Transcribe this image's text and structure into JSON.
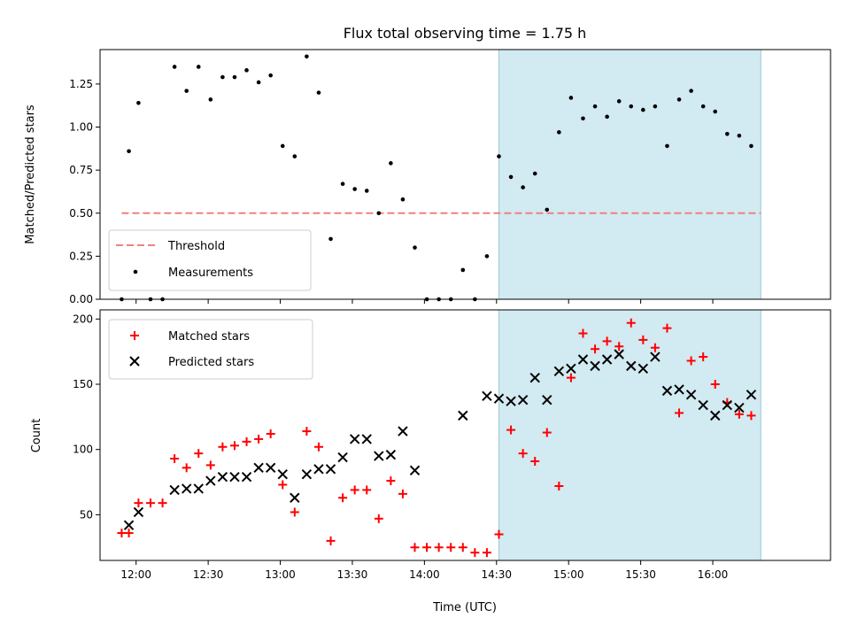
{
  "figure_title": "Flux total observing time = 1.75 h",
  "colors": {
    "measurement": "#000000",
    "threshold": "#f08080",
    "matched": "#ff0000",
    "predicted": "#000000",
    "shade": "#add8e6"
  },
  "chart_data": [
    {
      "type": "scatter",
      "name": "ratio-panel",
      "ylabel": "Matched/Predicted stars",
      "xlabel": "",
      "xlim": [
        "11:45",
        "16:49"
      ],
      "ylim": [
        0,
        1.45
      ],
      "yticks": [
        0.0,
        0.25,
        0.5,
        0.75,
        1.0,
        1.25
      ],
      "yticklabels": [
        "0.00",
        "0.25",
        "0.50",
        "0.75",
        "1.00",
        "1.25"
      ],
      "grid": false,
      "legend_position": "lower-left",
      "shaded_region": {
        "x_start": "14:31",
        "x_end": "16:20"
      },
      "threshold": {
        "name": "Threshold",
        "value": 0.5,
        "x_start": "11:54",
        "x_end": "16:20"
      },
      "series": [
        {
          "name": "Measurements",
          "x": [
            "11:54",
            "11:57",
            "12:01",
            "12:06",
            "12:11",
            "12:16",
            "12:21",
            "12:26",
            "12:31",
            "12:36",
            "12:41",
            "12:46",
            "12:51",
            "12:56",
            "13:01",
            "13:06",
            "13:11",
            "13:16",
            "13:21",
            "13:26",
            "13:31",
            "13:36",
            "13:41",
            "13:46",
            "13:51",
            "13:56",
            "14:01",
            "14:06",
            "14:11",
            "14:16",
            "14:21",
            "14:26",
            "14:31",
            "14:36",
            "14:41",
            "14:46",
            "14:51",
            "14:56",
            "15:01",
            "15:06",
            "15:11",
            "15:16",
            "15:21",
            "15:26",
            "15:31",
            "15:36",
            "15:41",
            "15:46",
            "15:51",
            "15:56",
            "16:01",
            "16:06",
            "16:11",
            "16:16"
          ],
          "y": [
            0.0,
            0.86,
            1.14,
            0.0,
            0.0,
            1.35,
            1.21,
            1.35,
            1.16,
            1.29,
            1.29,
            1.33,
            1.26,
            1.3,
            0.89,
            0.83,
            1.41,
            1.2,
            0.35,
            0.67,
            0.64,
            0.63,
            0.5,
            0.79,
            0.58,
            0.3,
            0.0,
            0.0,
            0.0,
            0.17,
            0.0,
            0.25,
            0.83,
            0.71,
            0.65,
            0.73,
            0.52,
            0.97,
            1.17,
            1.05,
            1.12,
            1.06,
            1.15,
            1.12,
            1.1,
            1.12,
            0.89,
            1.16,
            1.21,
            1.12,
            1.09,
            0.96,
            0.95,
            0.89
          ]
        }
      ]
    },
    {
      "type": "scatter",
      "name": "count-panel",
      "ylabel": "Count",
      "xlabel": "Time (UTC)",
      "xlim": [
        "11:45",
        "16:49"
      ],
      "ylim": [
        15,
        207
      ],
      "yticks": [
        50,
        100,
        150,
        200
      ],
      "yticklabels": [
        "50",
        "100",
        "150",
        "200"
      ],
      "xticks": [
        "12:00",
        "12:30",
        "13:00",
        "13:30",
        "14:00",
        "14:30",
        "15:00",
        "15:30",
        "16:00"
      ],
      "grid": false,
      "legend_position": "upper-left",
      "shaded_region": {
        "x_start": "14:31",
        "x_end": "16:20"
      },
      "series": [
        {
          "name": "Matched stars",
          "marker": "plus",
          "x": [
            "11:54",
            "11:57",
            "12:01",
            "12:06",
            "12:11",
            "12:16",
            "12:21",
            "12:26",
            "12:31",
            "12:36",
            "12:41",
            "12:46",
            "12:51",
            "12:56",
            "13:01",
            "13:06",
            "13:11",
            "13:16",
            "13:21",
            "13:26",
            "13:31",
            "13:36",
            "13:41",
            "13:46",
            "13:51",
            "13:56",
            "14:01",
            "14:06",
            "14:11",
            "14:16",
            "14:21",
            "14:26",
            "14:31",
            "14:36",
            "14:41",
            "14:46",
            "14:51",
            "14:56",
            "15:01",
            "15:06",
            "15:11",
            "15:16",
            "15:21",
            "15:26",
            "15:31",
            "15:36",
            "15:41",
            "15:46",
            "15:51",
            "15:56",
            "16:01",
            "16:06",
            "16:11",
            "16:16"
          ],
          "y": [
            36,
            36,
            59,
            59,
            59,
            93,
            86,
            97,
            88,
            102,
            103,
            106,
            108,
            112,
            73,
            52,
            114,
            102,
            30,
            63,
            69,
            69,
            47,
            76,
            66,
            25,
            25,
            25,
            25,
            25,
            21,
            21,
            35,
            115,
            97,
            91,
            113,
            72,
            155,
            189,
            177,
            183,
            179,
            197,
            184,
            178,
            193,
            128,
            168,
            171,
            150,
            136,
            127,
            126
          ]
        },
        {
          "name": "Predicted stars",
          "marker": "x",
          "x": [
            "11:57",
            "12:01",
            "12:16",
            "12:21",
            "12:26",
            "12:31",
            "12:36",
            "12:41",
            "12:46",
            "12:51",
            "12:56",
            "13:01",
            "13:06",
            "13:11",
            "13:16",
            "13:21",
            "13:26",
            "13:31",
            "13:36",
            "13:41",
            "13:46",
            "13:51",
            "13:56",
            "14:16",
            "14:26",
            "14:31",
            "14:36",
            "14:41",
            "14:46",
            "14:51",
            "14:56",
            "15:01",
            "15:06",
            "15:11",
            "15:16",
            "15:21",
            "15:26",
            "15:31",
            "15:36",
            "15:41",
            "15:46",
            "15:51",
            "15:56",
            "16:01",
            "16:06",
            "16:11",
            "16:16"
          ],
          "y": [
            42,
            52,
            69,
            70,
            70,
            76,
            79,
            79,
            79,
            86,
            86,
            81,
            63,
            81,
            85,
            85,
            94,
            108,
            108,
            95,
            96,
            114,
            84,
            126,
            141,
            139,
            137,
            138,
            155,
            138,
            160,
            162,
            169,
            164,
            169,
            173,
            164,
            162,
            171,
            145,
            146,
            142,
            134,
            126,
            134,
            132,
            142
          ]
        }
      ]
    }
  ]
}
